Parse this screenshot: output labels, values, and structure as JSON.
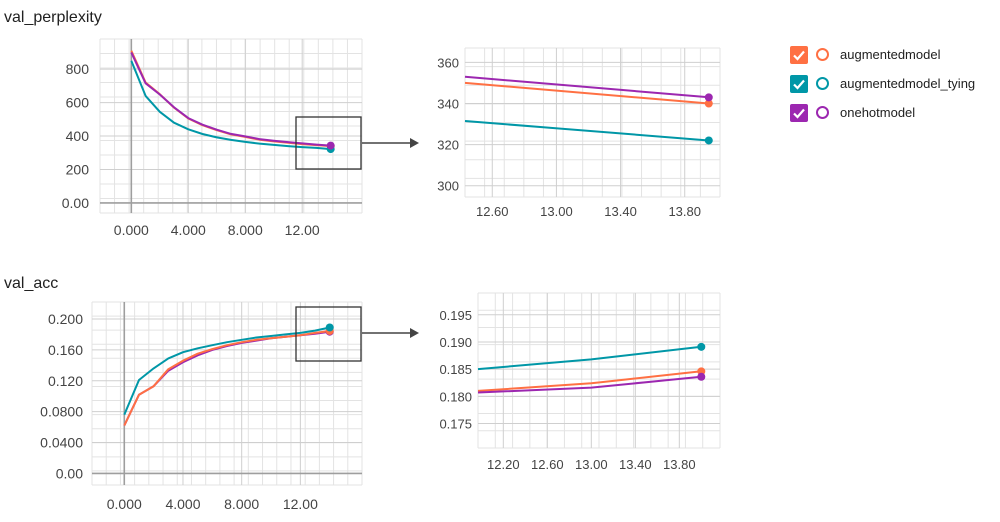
{
  "colors": {
    "augmentedmodel": "#ff7043",
    "augmentedmodel_tying": "#0097a7",
    "onehotmodel": "#9c27b0"
  },
  "legend": {
    "items": [
      {
        "label": "augmentedmodel",
        "color": "#ff7043",
        "checked": true,
        "icon": "check-icon"
      },
      {
        "label": "augmentedmodel_tying",
        "color": "#0097a7",
        "checked": true,
        "icon": "check-icon"
      },
      {
        "label": "onehotmodel",
        "color": "#9c27b0",
        "checked": true,
        "icon": "check-icon"
      }
    ]
  },
  "chart_data": [
    {
      "id": "perp-main",
      "type": "line",
      "title": "val_perplexity",
      "xlabel": "",
      "ylabel": "",
      "xlim": [
        -2.2,
        16.2
      ],
      "ylim": [
        -60,
        980
      ],
      "xticks": [
        0,
        4,
        8,
        12
      ],
      "xtick_labels": [
        "0.000",
        "4.000",
        "8.000",
        "12.00"
      ],
      "yticks": [
        0,
        200,
        400,
        600,
        800
      ],
      "ytick_labels": [
        "0.00",
        "200",
        "400",
        "600",
        "800"
      ],
      "grid": true,
      "series": [
        {
          "name": "augmentedmodel",
          "color": "#ff7043",
          "x": [
            0,
            1,
            2,
            3,
            4,
            5,
            6,
            7,
            8,
            9,
            10,
            11,
            12,
            13,
            14
          ],
          "y": [
            910,
            720,
            650,
            570,
            505,
            465,
            435,
            410,
            395,
            378,
            368,
            360,
            352,
            346,
            340
          ]
        },
        {
          "name": "augmentedmodel_tying",
          "color": "#0097a7",
          "x": [
            0,
            1,
            2,
            3,
            4,
            5,
            6,
            7,
            8,
            9,
            10,
            11,
            12,
            13,
            14
          ],
          "y": [
            850,
            640,
            545,
            480,
            440,
            412,
            392,
            377,
            365,
            355,
            347,
            340,
            334,
            329,
            322
          ]
        },
        {
          "name": "onehotmodel",
          "color": "#9c27b0",
          "x": [
            0,
            1,
            2,
            3,
            4,
            5,
            6,
            7,
            8,
            9,
            10,
            11,
            12,
            13,
            14
          ],
          "y": [
            900,
            715,
            648,
            572,
            507,
            468,
            438,
            413,
            398,
            382,
            372,
            364,
            356,
            349,
            343
          ]
        }
      ]
    },
    {
      "id": "perp-zoom",
      "type": "line",
      "title": "",
      "xlabel": "",
      "ylabel": "",
      "xlim": [
        12.43,
        14.02
      ],
      "ylim": [
        294.5,
        367
      ],
      "xticks": [
        12.6,
        13.0,
        13.4,
        13.8
      ],
      "xtick_labels": [
        "12.60",
        "13.00",
        "13.40",
        "13.80"
      ],
      "yticks": [
        300,
        320,
        340,
        360
      ],
      "ytick_labels": [
        "300",
        "320",
        "340",
        "360"
      ],
      "grid": true,
      "series": [
        {
          "name": "augmentedmodel",
          "color": "#ff7043",
          "x": [
            12.43,
            13.95
          ],
          "y": [
            350,
            340
          ]
        },
        {
          "name": "augmentedmodel_tying",
          "color": "#0097a7",
          "x": [
            12.43,
            13.95
          ],
          "y": [
            331.5,
            322
          ]
        },
        {
          "name": "onehotmodel",
          "color": "#9c27b0",
          "x": [
            12.43,
            13.95
          ],
          "y": [
            353,
            343
          ]
        }
      ]
    },
    {
      "id": "acc-main",
      "type": "line",
      "title": "val_acc",
      "xlabel": "",
      "ylabel": "",
      "xlim": [
        -2.2,
        16.2
      ],
      "ylim": [
        -0.015,
        0.222
      ],
      "xticks": [
        0,
        4,
        8,
        12
      ],
      "xtick_labels": [
        "0.000",
        "4.000",
        "8.000",
        "12.00"
      ],
      "yticks": [
        0,
        0.04,
        0.08,
        0.12,
        0.16,
        0.2
      ],
      "ytick_labels": [
        "0.00",
        "0.0400",
        "0.0800",
        "0.120",
        "0.160",
        "0.200"
      ],
      "grid": true,
      "series": [
        {
          "name": "onehotmodel",
          "color": "#9c27b0",
          "x": [
            0,
            1,
            2,
            3,
            4,
            5,
            6,
            7,
            8,
            9,
            10,
            11,
            12,
            13,
            14
          ],
          "y": [
            0.062,
            0.102,
            0.113,
            0.133,
            0.144,
            0.153,
            0.16,
            0.165,
            0.169,
            0.172,
            0.175,
            0.177,
            0.179,
            0.181,
            0.1835
          ]
        },
        {
          "name": "augmentedmodel",
          "color": "#ff7043",
          "x": [
            0,
            1,
            2,
            3,
            4,
            5,
            6,
            7,
            8,
            9,
            10,
            11,
            12,
            13,
            14
          ],
          "y": [
            0.062,
            0.102,
            0.113,
            0.135,
            0.146,
            0.155,
            0.161,
            0.166,
            0.17,
            0.173,
            0.175,
            0.177,
            0.179,
            0.182,
            0.1845
          ]
        },
        {
          "name": "augmentedmodel_tying",
          "color": "#0097a7",
          "x": [
            0,
            1,
            2,
            3,
            4,
            5,
            6,
            7,
            8,
            9,
            10,
            11,
            12,
            13,
            14
          ],
          "y": [
            0.076,
            0.121,
            0.136,
            0.149,
            0.157,
            0.162,
            0.166,
            0.17,
            0.173,
            0.176,
            0.178,
            0.18,
            0.182,
            0.185,
            0.189
          ]
        }
      ]
    },
    {
      "id": "acc-zoom",
      "type": "line",
      "title": "",
      "xlabel": "",
      "ylabel": "",
      "xlim": [
        11.97,
        14.17
      ],
      "ylim": [
        0.1705,
        0.199
      ],
      "xticks": [
        12.2,
        12.6,
        13.0,
        13.4,
        13.8
      ],
      "xtick_labels": [
        "12.20",
        "12.60",
        "13.00",
        "13.40",
        "13.80"
      ],
      "yticks": [
        0.175,
        0.18,
        0.185,
        0.19,
        0.195
      ],
      "ytick_labels": [
        "0.175",
        "0.180",
        "0.185",
        "0.190",
        "0.195"
      ],
      "grid": true,
      "series": [
        {
          "name": "augmentedmodel_tying",
          "color": "#0097a7",
          "x": [
            11.97,
            13.0,
            14.0
          ],
          "y": [
            0.185,
            0.1868,
            0.1891
          ]
        },
        {
          "name": "augmentedmodel",
          "color": "#ff7043",
          "x": [
            11.97,
            13.0,
            14.0
          ],
          "y": [
            0.181,
            0.1824,
            0.1846
          ]
        },
        {
          "name": "onehotmodel",
          "color": "#9c27b0",
          "x": [
            11.97,
            13.0,
            14.0
          ],
          "y": [
            0.1807,
            0.1816,
            0.1836
          ]
        }
      ]
    }
  ]
}
